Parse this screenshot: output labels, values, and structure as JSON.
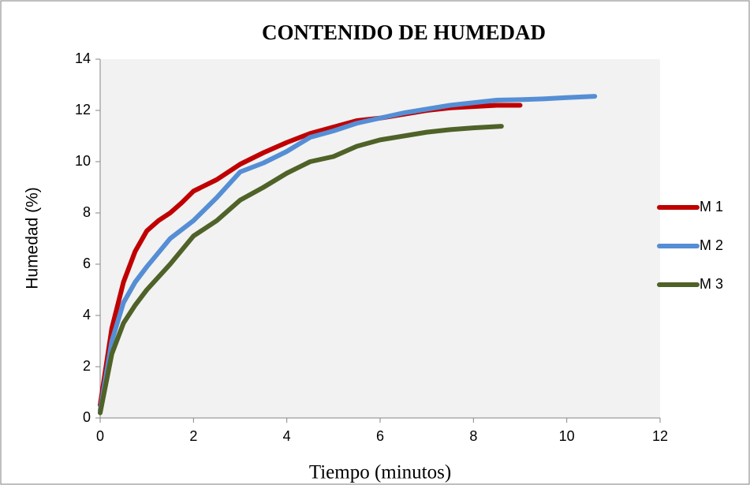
{
  "chart_data": {
    "type": "line",
    "title": "CONTENIDO DE HUMEDAD",
    "xlabel": "Tiempo (minutos)",
    "ylabel": "Humedad (%)",
    "xlim": [
      0,
      12
    ],
    "xticks": [
      0,
      2,
      4,
      6,
      8,
      10,
      12
    ],
    "ylim": [
      0,
      14
    ],
    "yticks": [
      0,
      2,
      4,
      6,
      8,
      10,
      12,
      14
    ],
    "legend": "right",
    "series": [
      {
        "name": "M 1",
        "color": "#c00000",
        "x": [
          0,
          0.25,
          0.5,
          0.75,
          1,
          1.25,
          1.5,
          1.75,
          2,
          2.5,
          3,
          3.5,
          4,
          4.5,
          5,
          5.5,
          6,
          6.5,
          7,
          7.5,
          8,
          8.5,
          9
        ],
        "values": [
          0.5,
          3.5,
          5.3,
          6.5,
          7.3,
          7.7,
          8,
          8.4,
          8.85,
          9.3,
          9.9,
          10.35,
          10.75,
          11.1,
          11.35,
          11.6,
          11.7,
          11.85,
          12,
          12.1,
          12.15,
          12.2,
          12.2
        ]
      },
      {
        "name": "M 2",
        "color": "#558ed5",
        "x": [
          0,
          0.25,
          0.5,
          0.75,
          1,
          1.5,
          2,
          2.5,
          3,
          3.5,
          4,
          4.5,
          5,
          5.5,
          6,
          6.5,
          7,
          7.5,
          8,
          8.5,
          9,
          9.5,
          10,
          10.6
        ],
        "values": [
          0.3,
          3.0,
          4.5,
          5.3,
          5.9,
          7,
          7.7,
          8.6,
          9.6,
          9.95,
          10.4,
          10.95,
          11.2,
          11.5,
          11.7,
          11.9,
          12.05,
          12.2,
          12.3,
          12.4,
          12.42,
          12.45,
          12.5,
          12.55
        ]
      },
      {
        "name": "M 3",
        "color": "#4f6228",
        "x": [
          0,
          0.25,
          0.5,
          0.75,
          1,
          1.5,
          2,
          2.5,
          3,
          3.5,
          4,
          4.5,
          5,
          5.5,
          6,
          6.5,
          7,
          7.5,
          8,
          8.6
        ],
        "values": [
          0.2,
          2.5,
          3.7,
          4.4,
          5,
          6,
          7.1,
          7.7,
          8.5,
          9,
          9.55,
          10,
          10.2,
          10.6,
          10.85,
          11,
          11.15,
          11.25,
          11.32,
          11.38
        ]
      }
    ]
  }
}
